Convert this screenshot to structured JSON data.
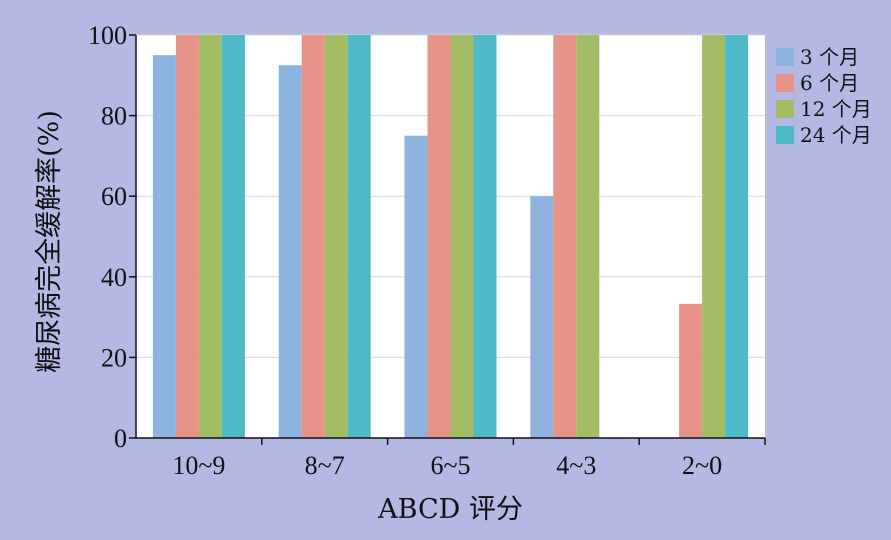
{
  "chart_data": {
    "type": "bar",
    "xlabel": "ABCD 评分",
    "ylabel": "糖尿病完全缓解率(%)",
    "ylim": [
      0,
      100
    ],
    "yticks": [
      0,
      20,
      40,
      60,
      80,
      100
    ],
    "grid": true,
    "legend_position": "right",
    "categories": [
      "10~9",
      "8~7",
      "6~5",
      "4~3",
      "2~0"
    ],
    "series": [
      {
        "name": "3 个月",
        "color": "#8db3e1",
        "values": [
          95,
          92.5,
          75,
          60,
          0
        ]
      },
      {
        "name": "6 个月",
        "color": "#e6948a",
        "values": [
          100,
          100,
          100,
          100,
          33.3
        ]
      },
      {
        "name": "12 个月",
        "color": "#a3bd65",
        "values": [
          100,
          100,
          100,
          100,
          100
        ]
      },
      {
        "name": "24 个月",
        "color": "#4eb9c7",
        "values": [
          100,
          100,
          100,
          null,
          100
        ]
      }
    ]
  }
}
